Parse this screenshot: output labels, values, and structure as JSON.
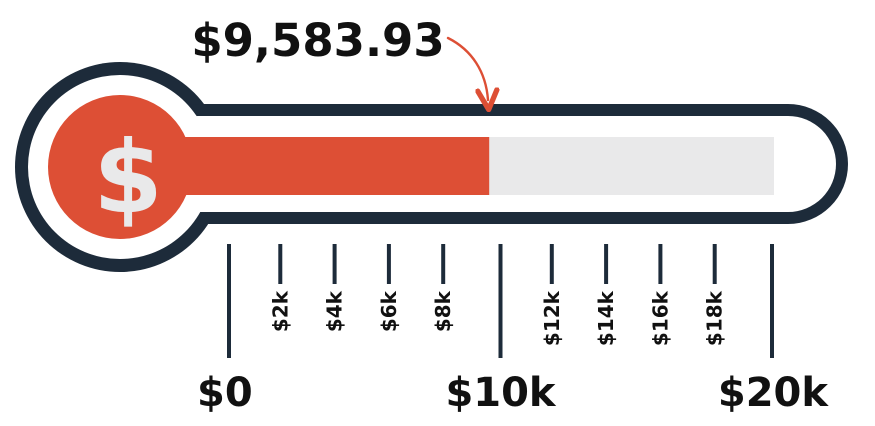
{
  "chart_data": {
    "type": "bar",
    "orientation": "horizontal-thermometer",
    "current_value": 9583.93,
    "current_value_label": "$9,583.93",
    "goal_value": 20000,
    "xlim": [
      0,
      20000
    ],
    "icon": "dollar-sign-icon",
    "icon_glyph": "$",
    "major_ticks": [
      {
        "value": 0,
        "label": "$0"
      },
      {
        "value": 10000,
        "label": "$10k"
      },
      {
        "value": 20000,
        "label": "$20k"
      }
    ],
    "minor_ticks": [
      {
        "value": 2000,
        "label": "$2k"
      },
      {
        "value": 4000,
        "label": "$4k"
      },
      {
        "value": 6000,
        "label": "$6k"
      },
      {
        "value": 8000,
        "label": "$8k"
      },
      {
        "value": 12000,
        "label": "$12k"
      },
      {
        "value": 14000,
        "label": "$14k"
      },
      {
        "value": 16000,
        "label": "$16k"
      },
      {
        "value": 18000,
        "label": "$18k"
      }
    ],
    "colors": {
      "outline": "#1d2b3a",
      "fill": "#dd4f35",
      "track": "#e9e9ea",
      "icon_text": "#e9e9ea",
      "text": "#111111"
    }
  }
}
